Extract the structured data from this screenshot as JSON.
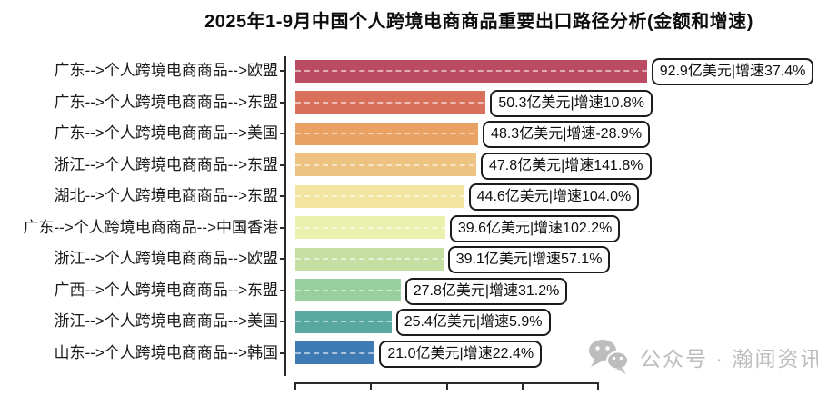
{
  "title": "2025年1-9月中国个人跨境电商商品重要出口路径分析(金额和增速)",
  "watermark": {
    "icon": "wechat-icon",
    "text": "公众号 · 瀚闻资讯"
  },
  "chart_data": {
    "type": "bar",
    "orientation": "horizontal",
    "title": "2025年1-9月中国个人跨境电商商品重要出口路径分析(金额和增速)",
    "unit": "亿美元",
    "xlim": [
      0,
      80
    ],
    "x_ticks": [
      0,
      20,
      40,
      60,
      80
    ],
    "grid": "dashed row lines over bars",
    "legend": "none",
    "categories": [
      "广东-->个人跨境电商商品-->欧盟",
      "广东-->个人跨境电商商品-->东盟",
      "广东-->个人跨境电商商品-->美国",
      "浙江-->个人跨境电商商品-->东盟",
      "湖北-->个人跨境电商商品-->东盟",
      "广东-->个人跨境电商商品-->中国香港",
      "浙江-->个人跨境电商商品-->欧盟",
      "广西-->个人跨境电商商品-->东盟",
      "浙江-->个人跨境电商商品-->美国",
      "山东-->个人跨境电商商品-->韩国"
    ],
    "values": [
      92.9,
      50.3,
      48.3,
      47.8,
      44.6,
      39.6,
      39.1,
      27.8,
      25.4,
      21.0
    ],
    "growth_pct": [
      37.4,
      10.8,
      -28.9,
      141.8,
      104.0,
      102.2,
      57.1,
      31.2,
      5.9,
      22.4
    ],
    "value_labels": [
      "92.9亿美元|增速37.4%",
      "50.3亿美元|增速10.8%",
      "48.3亿美元|增速-28.9%",
      "47.8亿美元|增速141.8%",
      "44.6亿美元|增速104.0%",
      "39.6亿美元|增速102.2%",
      "39.1亿美元|增速57.1%",
      "27.8亿美元|增速31.2%",
      "25.4亿美元|增速5.9%",
      "21.0亿美元|增速22.4%"
    ],
    "bar_colors": [
      "#bb4b60",
      "#d8705b",
      "#e9a264",
      "#eec280",
      "#f3e5a0",
      "#eaf0ad",
      "#c5dfa2",
      "#97cf9f",
      "#58a8a1",
      "#3e7ab3"
    ]
  }
}
